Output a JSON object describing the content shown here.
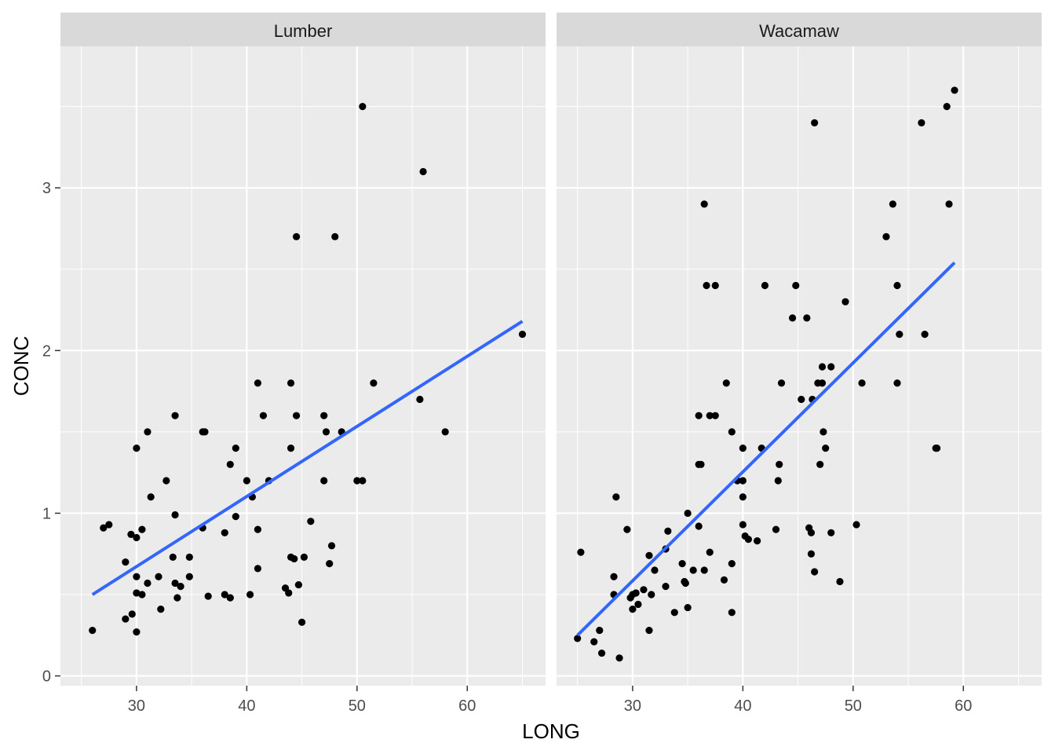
{
  "chart_data": {
    "type": "scatter",
    "xlabel": "LONG",
    "ylabel": "CONC",
    "xlim": [
      23.1,
      67.1
    ],
    "ylim": [
      -0.06,
      3.87
    ],
    "x_ticks": [
      30,
      40,
      50,
      60
    ],
    "y_ticks": [
      0,
      1,
      2,
      3
    ],
    "grid": true,
    "colors": {
      "panel_bg": "#EBEBEB",
      "strip_bg": "#D9D9D9",
      "grid": "#FFFFFF",
      "point": "#000000",
      "fit_line": "#3366FF"
    },
    "panels": [
      {
        "facet": "Lumber",
        "trend_line": [
          [
            26.0,
            0.5
          ],
          [
            65.0,
            2.18
          ]
        ],
        "points": [
          [
            26.0,
            0.28
          ],
          [
            27.0,
            0.91
          ],
          [
            27.5,
            0.93
          ],
          [
            29.0,
            0.7
          ],
          [
            29.0,
            0.35
          ],
          [
            29.5,
            0.87
          ],
          [
            29.6,
            0.38
          ],
          [
            30.0,
            1.4
          ],
          [
            30.0,
            0.85
          ],
          [
            30.0,
            0.61
          ],
          [
            30.0,
            0.51
          ],
          [
            30.0,
            0.27
          ],
          [
            30.5,
            0.9
          ],
          [
            30.5,
            0.5
          ],
          [
            31.0,
            1.5
          ],
          [
            31.0,
            0.57
          ],
          [
            31.3,
            1.1
          ],
          [
            32.0,
            0.61
          ],
          [
            32.2,
            0.41
          ],
          [
            32.7,
            1.2
          ],
          [
            33.3,
            0.73
          ],
          [
            33.5,
            1.6
          ],
          [
            33.5,
            0.99
          ],
          [
            33.5,
            0.57
          ],
          [
            33.7,
            0.48
          ],
          [
            34.0,
            0.55
          ],
          [
            34.8,
            0.73
          ],
          [
            34.8,
            0.61
          ],
          [
            36.0,
            1.5
          ],
          [
            36.2,
            1.5
          ],
          [
            36.0,
            0.91
          ],
          [
            36.5,
            0.49
          ],
          [
            38.0,
            0.88
          ],
          [
            38.0,
            0.5
          ],
          [
            38.5,
            1.3
          ],
          [
            38.5,
            0.48
          ],
          [
            39.0,
            1.4
          ],
          [
            39.0,
            0.98
          ],
          [
            40.0,
            1.2
          ],
          [
            40.3,
            0.5
          ],
          [
            40.5,
            1.1
          ],
          [
            41.0,
            1.8
          ],
          [
            41.0,
            0.9
          ],
          [
            41.0,
            0.66
          ],
          [
            41.5,
            1.6
          ],
          [
            42.0,
            1.2
          ],
          [
            43.5,
            0.54
          ],
          [
            43.8,
            0.51
          ],
          [
            44.0,
            1.8
          ],
          [
            44.0,
            1.4
          ],
          [
            44.0,
            0.73
          ],
          [
            44.3,
            0.72
          ],
          [
            44.5,
            2.7
          ],
          [
            44.5,
            1.6
          ],
          [
            44.7,
            0.56
          ],
          [
            45.0,
            0.33
          ],
          [
            45.2,
            0.73
          ],
          [
            45.8,
            0.95
          ],
          [
            47.0,
            1.6
          ],
          [
            47.0,
            1.2
          ],
          [
            47.2,
            1.5
          ],
          [
            47.5,
            0.69
          ],
          [
            47.7,
            0.8
          ],
          [
            48.0,
            2.7
          ],
          [
            48.6,
            1.5
          ],
          [
            50.0,
            1.2
          ],
          [
            50.5,
            3.5
          ],
          [
            50.5,
            1.2
          ],
          [
            51.5,
            1.8
          ],
          [
            55.7,
            1.7
          ],
          [
            56.0,
            3.1
          ],
          [
            58.0,
            1.5
          ],
          [
            65.0,
            2.1
          ]
        ]
      },
      {
        "facet": "Wacamaw",
        "trend_line": [
          [
            25.0,
            0.25
          ],
          [
            59.2,
            2.54
          ]
        ],
        "points": [
          [
            25.0,
            0.23
          ],
          [
            25.3,
            0.76
          ],
          [
            26.5,
            0.21
          ],
          [
            27.0,
            0.28
          ],
          [
            27.2,
            0.14
          ],
          [
            28.3,
            0.5
          ],
          [
            28.3,
            0.61
          ],
          [
            28.5,
            1.1
          ],
          [
            28.8,
            0.11
          ],
          [
            29.5,
            0.9
          ],
          [
            29.8,
            0.48
          ],
          [
            30.0,
            0.41
          ],
          [
            30.0,
            0.5
          ],
          [
            30.3,
            0.51
          ],
          [
            30.5,
            0.44
          ],
          [
            31.0,
            0.53
          ],
          [
            31.5,
            0.74
          ],
          [
            31.5,
            0.28
          ],
          [
            31.7,
            0.5
          ],
          [
            32.0,
            0.65
          ],
          [
            33.0,
            0.78
          ],
          [
            33.0,
            0.55
          ],
          [
            33.2,
            0.89
          ],
          [
            33.8,
            0.39
          ],
          [
            34.5,
            0.69
          ],
          [
            34.7,
            0.58
          ],
          [
            34.8,
            0.57
          ],
          [
            35.0,
            1.0
          ],
          [
            35.0,
            0.42
          ],
          [
            35.5,
            0.65
          ],
          [
            36.0,
            1.6
          ],
          [
            36.0,
            1.3
          ],
          [
            36.2,
            1.3
          ],
          [
            36.0,
            0.92
          ],
          [
            36.5,
            2.9
          ],
          [
            36.7,
            2.4
          ],
          [
            36.5,
            0.65
          ],
          [
            37.0,
            1.6
          ],
          [
            37.0,
            0.76
          ],
          [
            37.5,
            1.6
          ],
          [
            37.5,
            2.4
          ],
          [
            38.3,
            0.59
          ],
          [
            38.5,
            1.8
          ],
          [
            39.0,
            1.5
          ],
          [
            39.0,
            0.69
          ],
          [
            39.0,
            0.39
          ],
          [
            39.5,
            1.2
          ],
          [
            40.0,
            1.4
          ],
          [
            40.0,
            1.2
          ],
          [
            40.0,
            1.1
          ],
          [
            40.0,
            0.93
          ],
          [
            40.2,
            0.86
          ],
          [
            40.5,
            0.84
          ],
          [
            41.3,
            0.83
          ],
          [
            41.7,
            1.4
          ],
          [
            42.0,
            2.4
          ],
          [
            43.0,
            0.9
          ],
          [
            43.2,
            1.2
          ],
          [
            43.3,
            1.3
          ],
          [
            43.5,
            1.8
          ],
          [
            44.5,
            2.2
          ],
          [
            44.8,
            2.4
          ],
          [
            45.3,
            1.7
          ],
          [
            45.8,
            2.2
          ],
          [
            46.0,
            0.91
          ],
          [
            46.2,
            0.88
          ],
          [
            46.2,
            0.75
          ],
          [
            46.3,
            1.7
          ],
          [
            46.5,
            3.4
          ],
          [
            46.5,
            0.64
          ],
          [
            46.8,
            1.8
          ],
          [
            47.0,
            1.3
          ],
          [
            47.2,
            1.8
          ],
          [
            47.2,
            1.9
          ],
          [
            47.3,
            1.5
          ],
          [
            47.5,
            1.4
          ],
          [
            48.0,
            1.9
          ],
          [
            48.0,
            0.88
          ],
          [
            48.8,
            0.58
          ],
          [
            49.3,
            2.3
          ],
          [
            50.3,
            0.93
          ],
          [
            50.8,
            1.8
          ],
          [
            53.0,
            2.7
          ],
          [
            53.6,
            2.9
          ],
          [
            54.0,
            1.8
          ],
          [
            54.0,
            2.4
          ],
          [
            54.2,
            2.1
          ],
          [
            56.2,
            3.4
          ],
          [
            56.5,
            2.1
          ],
          [
            57.5,
            1.4
          ],
          [
            57.6,
            1.4
          ],
          [
            58.5,
            3.5
          ],
          [
            58.7,
            2.9
          ],
          [
            59.2,
            3.6
          ]
        ]
      }
    ]
  }
}
